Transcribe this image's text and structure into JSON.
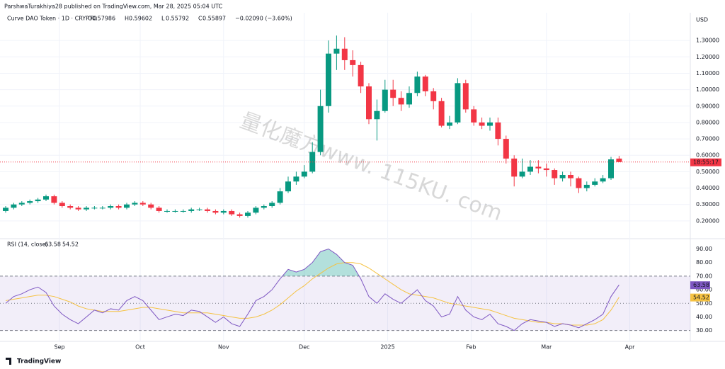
{
  "header": {
    "publisher": "ParshwaTurakhiya28 published on TradingView.com, Mar 28, 2025 05:04 UTC",
    "footer": "TradingView",
    "watermark": "量化魔方www. 115KU. com"
  },
  "chart_data": {
    "type": "candlestick",
    "title": "Curve DAO Token · 1D · CRYPTO",
    "currency": "USD",
    "change": "−0.02090 (−3.60%)",
    "countdown": "18:55:17",
    "up_color": "#089981",
    "down_color": "#f23645",
    "open": [
      0.26,
      0.28,
      0.3,
      0.31,
      0.32,
      0.33,
      0.35,
      0.31,
      0.29,
      0.28,
      0.27,
      0.28,
      0.28,
      0.28,
      0.29,
      0.28,
      0.3,
      0.31,
      0.3,
      0.28,
      0.26,
      0.26,
      0.26,
      0.26,
      0.27,
      0.27,
      0.26,
      0.25,
      0.26,
      0.24,
      0.23,
      0.25,
      0.28,
      0.29,
      0.31,
      0.38,
      0.44,
      0.47,
      0.5,
      0.62,
      0.9,
      1.22,
      1.25,
      1.18,
      1.15,
      1.02,
      0.82,
      0.87,
      1.0,
      0.95,
      0.91,
      0.98,
      1.08,
      0.99,
      0.93,
      0.78,
      0.8,
      1.04,
      0.88,
      0.8,
      0.78,
      0.8,
      0.7,
      0.58,
      0.47,
      0.5,
      0.53,
      0.52,
      0.51,
      0.46,
      0.48,
      0.46,
      0.4,
      0.42,
      0.44,
      0.46,
      0.57986
    ],
    "high": [
      0.29,
      0.31,
      0.32,
      0.33,
      0.34,
      0.36,
      0.36,
      0.32,
      0.3,
      0.29,
      0.29,
      0.29,
      0.29,
      0.3,
      0.3,
      0.31,
      0.32,
      0.32,
      0.31,
      0.29,
      0.27,
      0.27,
      0.27,
      0.28,
      0.28,
      0.28,
      0.27,
      0.27,
      0.27,
      0.25,
      0.26,
      0.29,
      0.3,
      0.32,
      0.4,
      0.47,
      0.5,
      0.54,
      0.68,
      1.0,
      1.3,
      1.33,
      1.32,
      1.24,
      1.17,
      1.04,
      0.94,
      1.06,
      1.06,
      0.99,
      1.02,
      1.11,
      1.09,
      1.01,
      0.95,
      0.84,
      1.07,
      1.06,
      0.9,
      0.83,
      0.83,
      0.83,
      0.72,
      0.6,
      0.58,
      0.57,
      0.57,
      0.55,
      0.52,
      0.5,
      0.5,
      0.47,
      0.44,
      0.46,
      0.48,
      0.59,
      0.59602
    ],
    "low": [
      0.25,
      0.27,
      0.29,
      0.3,
      0.31,
      0.32,
      0.3,
      0.28,
      0.27,
      0.26,
      0.26,
      0.27,
      0.27,
      0.27,
      0.27,
      0.27,
      0.29,
      0.29,
      0.27,
      0.25,
      0.25,
      0.25,
      0.25,
      0.25,
      0.26,
      0.25,
      0.24,
      0.24,
      0.23,
      0.22,
      0.22,
      0.24,
      0.27,
      0.28,
      0.3,
      0.37,
      0.42,
      0.46,
      0.49,
      0.6,
      0.86,
      1.12,
      1.12,
      1.08,
      0.98,
      0.79,
      0.69,
      0.86,
      0.9,
      0.87,
      0.89,
      0.96,
      0.96,
      0.88,
      0.77,
      0.76,
      0.79,
      0.86,
      0.78,
      0.76,
      0.75,
      0.66,
      0.55,
      0.41,
      0.46,
      0.48,
      0.49,
      0.47,
      0.42,
      0.44,
      0.41,
      0.37,
      0.38,
      0.41,
      0.43,
      0.45,
      0.55792
    ],
    "close": [
      0.28,
      0.3,
      0.31,
      0.32,
      0.33,
      0.35,
      0.31,
      0.29,
      0.28,
      0.27,
      0.28,
      0.28,
      0.28,
      0.29,
      0.28,
      0.3,
      0.31,
      0.3,
      0.28,
      0.26,
      0.26,
      0.26,
      0.26,
      0.27,
      0.27,
      0.26,
      0.25,
      0.26,
      0.24,
      0.23,
      0.25,
      0.28,
      0.29,
      0.31,
      0.38,
      0.44,
      0.47,
      0.5,
      0.62,
      0.9,
      1.22,
      1.25,
      1.18,
      1.15,
      1.02,
      0.82,
      0.87,
      1.0,
      0.95,
      0.91,
      0.98,
      1.08,
      0.99,
      0.93,
      0.78,
      0.8,
      1.04,
      0.88,
      0.8,
      0.78,
      0.8,
      0.7,
      0.58,
      0.47,
      0.5,
      0.53,
      0.52,
      0.51,
      0.46,
      0.48,
      0.46,
      0.4,
      0.42,
      0.44,
      0.46,
      0.575,
      0.55897
    ],
    "ylim": [
      0.1,
      1.4
    ],
    "yticks": [
      {
        "value": 0.2,
        "label": "0.20000"
      },
      {
        "value": 0.3,
        "label": "0.30000"
      },
      {
        "value": 0.4,
        "label": "0.40000"
      },
      {
        "value": 0.5,
        "label": "0.50000"
      },
      {
        "value": 0.6,
        "label": "0.60000"
      },
      {
        "value": 0.7,
        "label": "0.70000"
      },
      {
        "value": 0.8,
        "label": "0.80000"
      },
      {
        "value": 0.9,
        "label": "0.90000"
      },
      {
        "value": 1.0,
        "label": "1.00000"
      },
      {
        "value": 1.1,
        "label": "1.10000"
      },
      {
        "value": 1.2,
        "label": "1.20000"
      },
      {
        "value": 1.3,
        "label": "1.30000"
      }
    ],
    "xticks": [
      {
        "value": 6.67,
        "label": "Sep"
      },
      {
        "value": 16.67,
        "label": "Oct"
      },
      {
        "value": 27,
        "label": "Nov"
      },
      {
        "value": 37,
        "label": "Dec"
      },
      {
        "value": 47.33,
        "label": "2025"
      },
      {
        "value": 57.67,
        "label": "Feb"
      },
      {
        "value": 67,
        "label": "Mar"
      },
      {
        "value": 77.33,
        "label": "Apr"
      }
    ],
    "rsi": {
      "title": "RSI (14, close)",
      "color": "#7e57c2",
      "ma_color": "#f5c242",
      "zone_color": "#7e57c2",
      "overbought_color": "#26a69a",
      "values": [
        50,
        55,
        57,
        60,
        62,
        58,
        48,
        42,
        38,
        35,
        40,
        45,
        43,
        46,
        45,
        52,
        55,
        52,
        45,
        38,
        40,
        42,
        41,
        45,
        44,
        40,
        36,
        40,
        35,
        33,
        42,
        52,
        55,
        60,
        68,
        75,
        73,
        75,
        80,
        88,
        90,
        86,
        80,
        78,
        68,
        55,
        50,
        57,
        53,
        50,
        55,
        60,
        52,
        48,
        40,
        42,
        55,
        45,
        40,
        38,
        42,
        35,
        33,
        30,
        35,
        38,
        37,
        36,
        33,
        35,
        34,
        32,
        35,
        38,
        42,
        55,
        63.58
      ],
      "ma_values": [
        52,
        53,
        54,
        55,
        56,
        56,
        55,
        53,
        51,
        48,
        46,
        45,
        44,
        44,
        44,
        45,
        46,
        47,
        47,
        46,
        45,
        44,
        43,
        43,
        43,
        43,
        42,
        41,
        40,
        39,
        39,
        40,
        42,
        45,
        49,
        54,
        59,
        63,
        68,
        72,
        76,
        79,
        80,
        80,
        79,
        76,
        72,
        68,
        64,
        60,
        57,
        56,
        55,
        54,
        52,
        50,
        49,
        48,
        47,
        46,
        45,
        43,
        41,
        39,
        38,
        37,
        36,
        36,
        35,
        35,
        34,
        34,
        34,
        35,
        38,
        45,
        54.52
      ],
      "ylim": [
        22,
        96
      ],
      "yticks": [
        {
          "value": 30,
          "label": "30.00"
        },
        {
          "value": 40,
          "label": "40.00"
        },
        {
          "value": 50,
          "label": "50.00"
        },
        {
          "value": 60,
          "label": "60.00"
        },
        {
          "value": 70,
          "label": "70.00"
        },
        {
          "value": 80,
          "label": "80.00"
        },
        {
          "value": 90,
          "label": "90.00"
        }
      ],
      "bands": [
        70,
        50,
        30
      ]
    }
  }
}
